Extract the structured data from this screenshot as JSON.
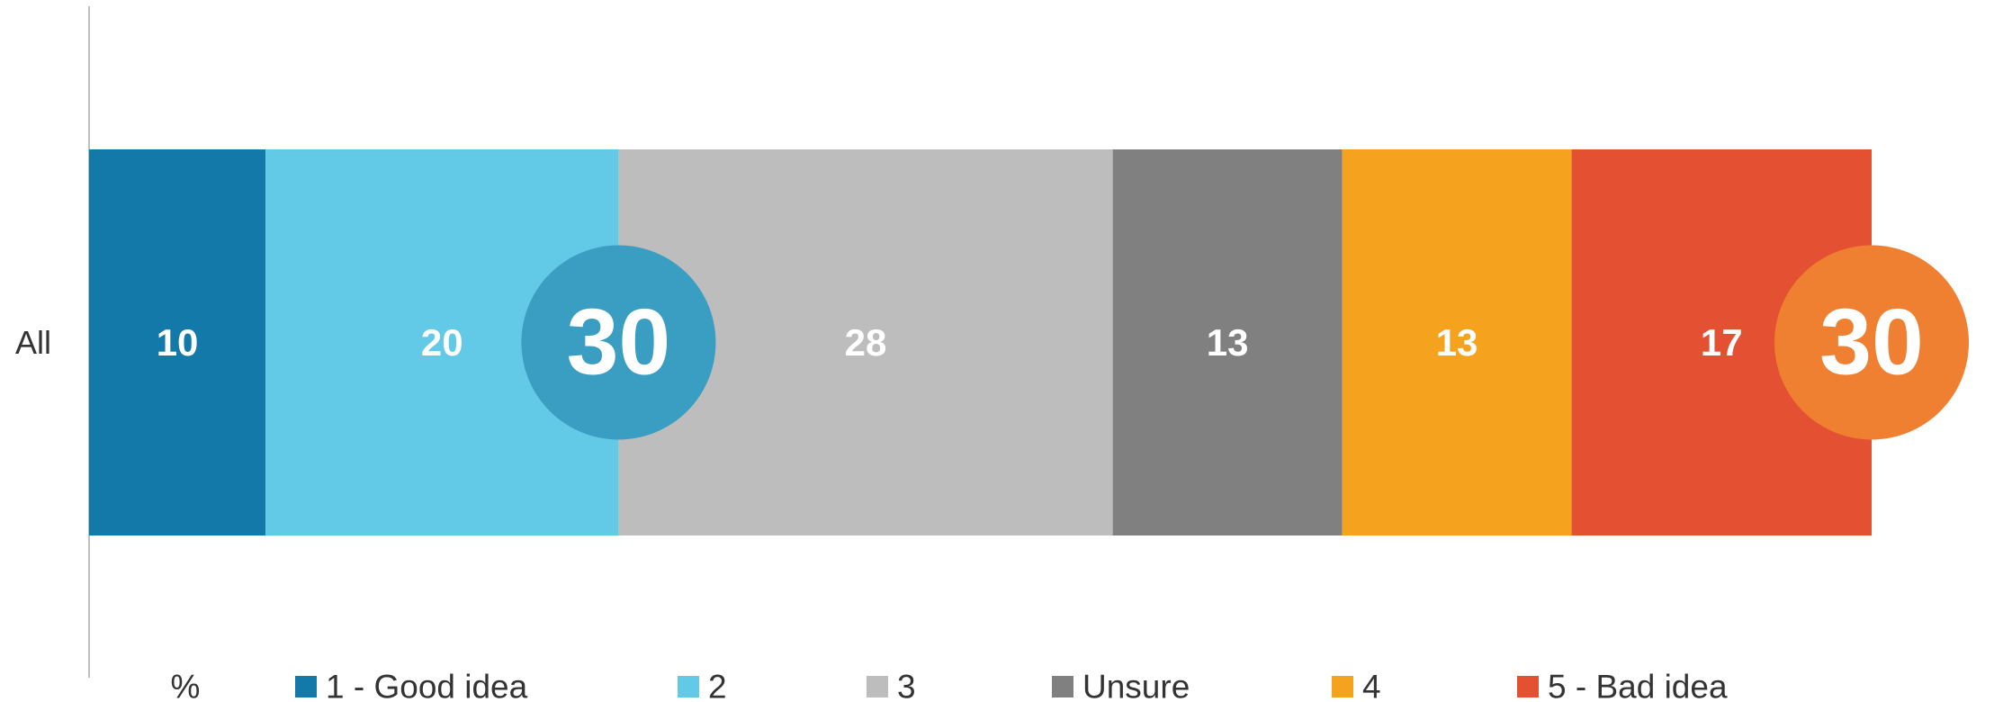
{
  "chart_data": {
    "type": "stacked-hbar",
    "categories": [
      "All"
    ],
    "unit": "%",
    "xlim": [
      0,
      101
    ],
    "series": [
      {
        "name": "1 - Good idea",
        "color": "#1279a8",
        "values": [
          10
        ]
      },
      {
        "name": "2",
        "color": "#62cae6",
        "values": [
          20
        ]
      },
      {
        "name": "3",
        "color": "#bdbdbd",
        "values": [
          28
        ]
      },
      {
        "name": "Unsure",
        "color": "#808080",
        "values": [
          13
        ]
      },
      {
        "name": "4",
        "color": "#f5a31f",
        "values": [
          13
        ]
      },
      {
        "name": "5 - Bad idea",
        "color": "#e35032",
        "values": [
          17
        ]
      }
    ],
    "annotations": [
      {
        "value": 30,
        "color": "#3a9ec2"
      },
      {
        "value": 30,
        "color": "#ef7f31"
      }
    ]
  }
}
